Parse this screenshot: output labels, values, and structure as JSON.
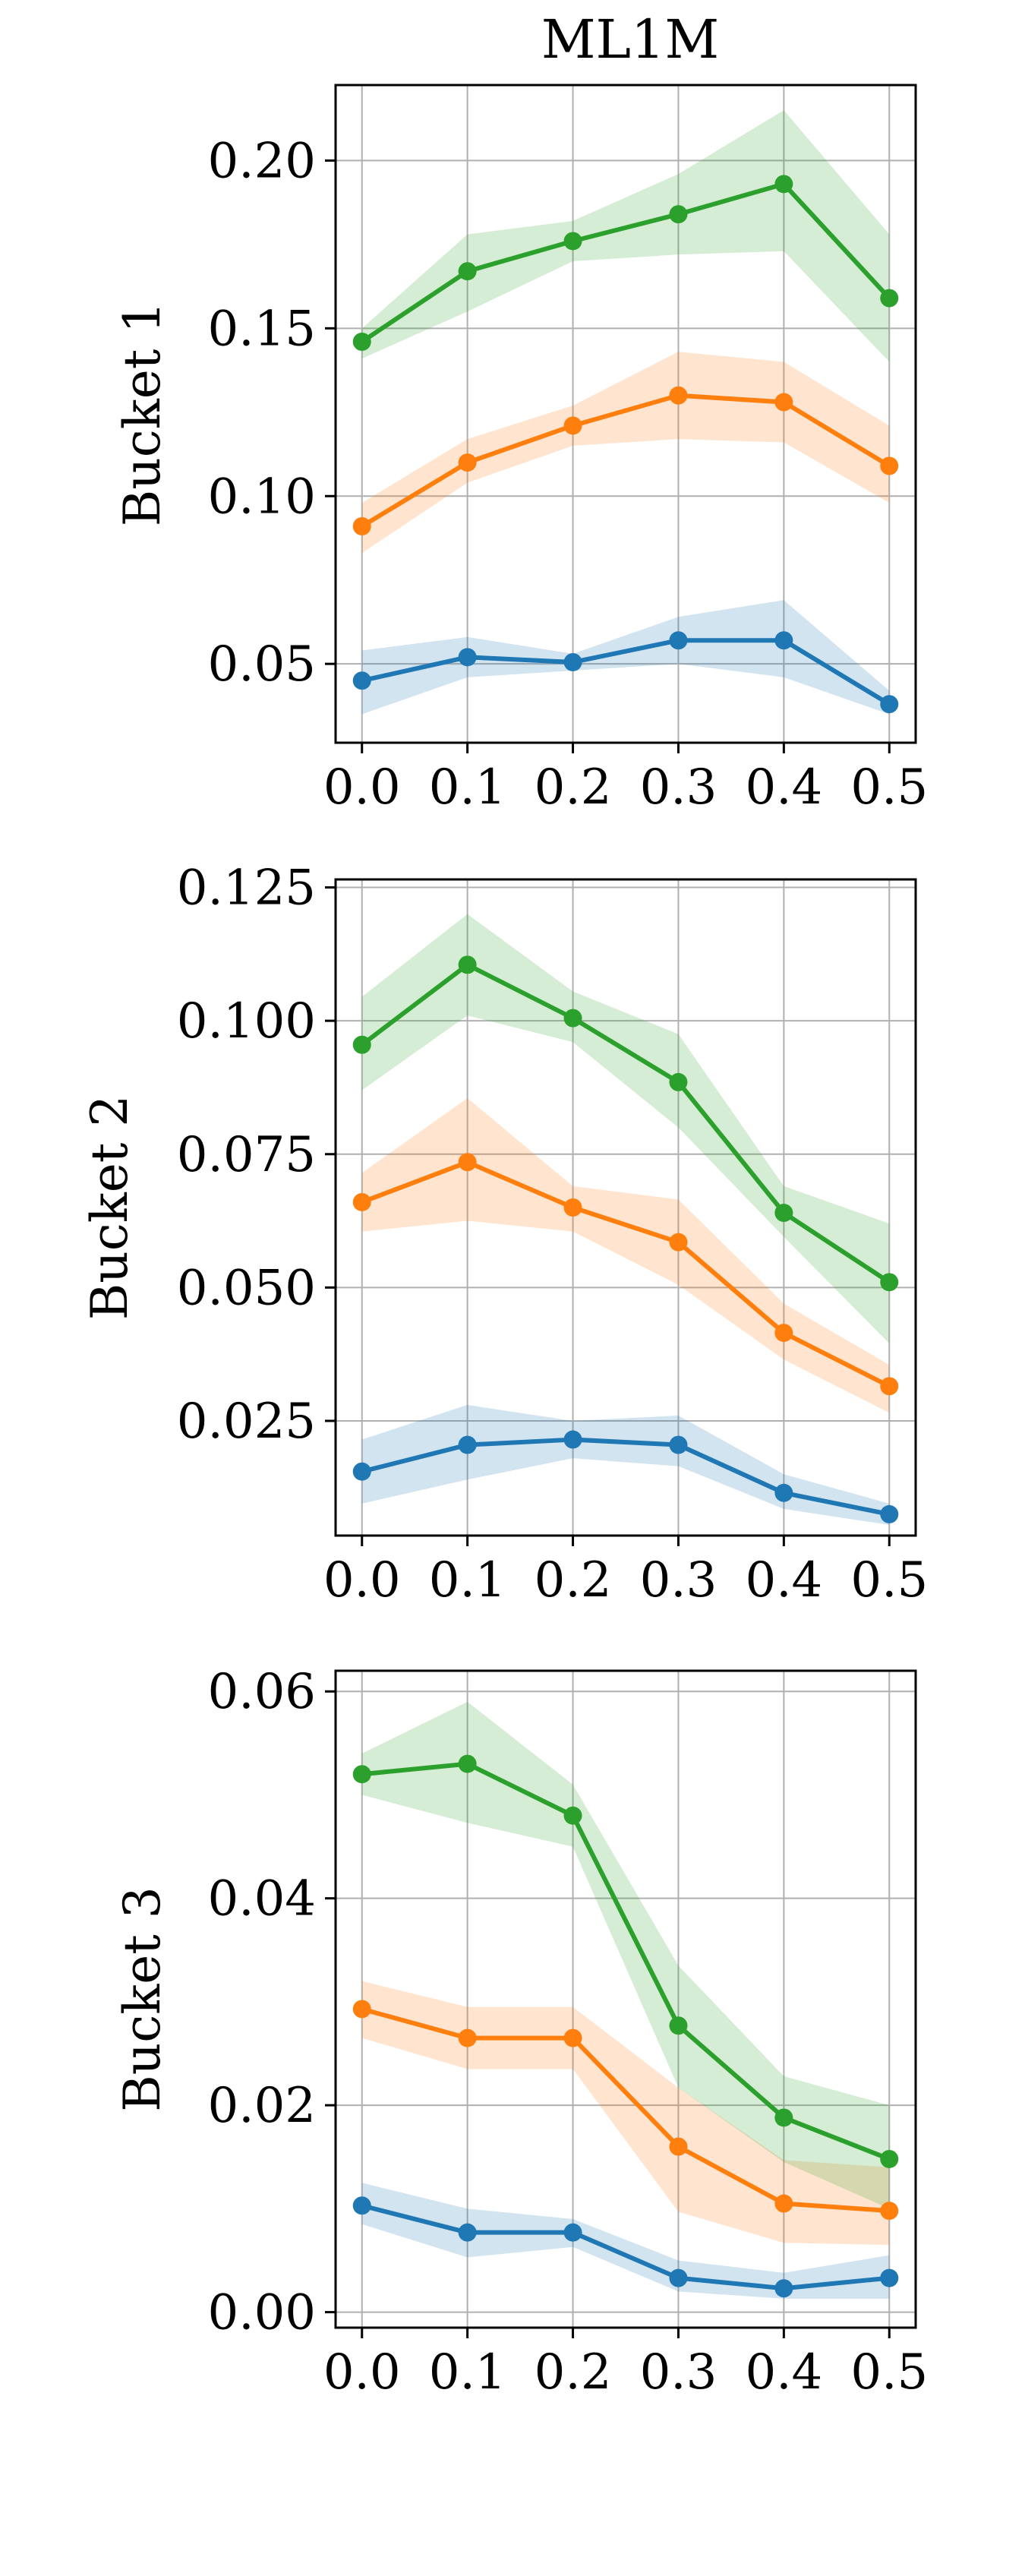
{
  "figure": {
    "title": "ML1M"
  },
  "colors": {
    "blue": "#1f77b4",
    "orange": "#ff7f0e",
    "green": "#2ca02c",
    "grid": "#b0b0b0",
    "axis": "#000000"
  },
  "chart_data": [
    {
      "type": "line",
      "title": "ML1M",
      "xlabel": "",
      "ylabel": "Bucket 1",
      "x": [
        0.0,
        0.1,
        0.2,
        0.3,
        0.4,
        0.5
      ],
      "xticks": [
        "0.0",
        "0.1",
        "0.2",
        "0.3",
        "0.4",
        "0.5"
      ],
      "xlim": [
        -0.025,
        0.525
      ],
      "ylim": [
        0.0265,
        0.2225
      ],
      "yticks": [
        "0.05",
        "0.10",
        "0.15",
        "0.20"
      ],
      "ytick_values": [
        0.05,
        0.1,
        0.15,
        0.2
      ],
      "grid": true,
      "series": [
        {
          "color": "blue",
          "values": [
            0.045,
            0.052,
            0.0505,
            0.057,
            0.057,
            0.038
          ],
          "lower": [
            0.035,
            0.046,
            0.048,
            0.05,
            0.046,
            0.035
          ],
          "upper": [
            0.054,
            0.058,
            0.053,
            0.064,
            0.069,
            0.042
          ]
        },
        {
          "color": "orange",
          "values": [
            0.091,
            0.11,
            0.121,
            0.13,
            0.128,
            0.109
          ],
          "lower": [
            0.083,
            0.104,
            0.115,
            0.117,
            0.116,
            0.098
          ],
          "upper": [
            0.098,
            0.117,
            0.127,
            0.143,
            0.14,
            0.121
          ]
        },
        {
          "color": "green",
          "values": [
            0.146,
            0.167,
            0.176,
            0.184,
            0.193,
            0.159
          ],
          "lower": [
            0.141,
            0.155,
            0.17,
            0.172,
            0.173,
            0.14
          ],
          "upper": [
            0.15,
            0.178,
            0.182,
            0.196,
            0.215,
            0.178
          ]
        }
      ]
    },
    {
      "type": "line",
      "title": "",
      "xlabel": "",
      "ylabel": "Bucket 2",
      "x": [
        0.0,
        0.1,
        0.2,
        0.3,
        0.4,
        0.5
      ],
      "xticks": [
        "0.0",
        "0.1",
        "0.2",
        "0.3",
        "0.4",
        "0.5"
      ],
      "xlim": [
        -0.025,
        0.525
      ],
      "ylim": [
        0.0035,
        0.1265
      ],
      "yticks": [
        "0.025",
        "0.050",
        "0.075",
        "0.100",
        "0.125"
      ],
      "ytick_values": [
        0.025,
        0.05,
        0.075,
        0.1,
        0.125
      ],
      "grid": true,
      "series": [
        {
          "color": "blue",
          "values": [
            0.0155,
            0.0205,
            0.0215,
            0.0205,
            0.0115,
            0.0075
          ],
          "lower": [
            0.0095,
            0.014,
            0.018,
            0.0165,
            0.0085,
            0.0055
          ],
          "upper": [
            0.0215,
            0.028,
            0.025,
            0.026,
            0.015,
            0.0095
          ]
        },
        {
          "color": "orange",
          "values": [
            0.066,
            0.0735,
            0.065,
            0.0585,
            0.0415,
            0.0315
          ],
          "lower": [
            0.0605,
            0.0625,
            0.0605,
            0.0505,
            0.0365,
            0.0265
          ],
          "upper": [
            0.0715,
            0.0855,
            0.069,
            0.0665,
            0.047,
            0.0355
          ]
        },
        {
          "color": "green",
          "values": [
            0.0955,
            0.1105,
            0.1005,
            0.0885,
            0.064,
            0.051
          ],
          "lower": [
            0.087,
            0.101,
            0.096,
            0.08,
            0.0595,
            0.0395
          ],
          "upper": [
            0.1045,
            0.12,
            0.1055,
            0.0975,
            0.069,
            0.062
          ]
        }
      ]
    },
    {
      "type": "line",
      "title": "",
      "xlabel": "",
      "ylabel": "Bucket 3",
      "x": [
        0.0,
        0.1,
        0.2,
        0.3,
        0.4,
        0.5
      ],
      "xticks": [
        "0.0",
        "0.1",
        "0.2",
        "0.3",
        "0.4",
        "0.5"
      ],
      "xlim": [
        -0.025,
        0.525
      ],
      "ylim": [
        -0.0015,
        0.062
      ],
      "yticks": [
        "0.00",
        "0.02",
        "0.04",
        "0.06"
      ],
      "ytick_values": [
        0.0,
        0.02,
        0.04,
        0.06
      ],
      "grid": true,
      "series": [
        {
          "color": "blue",
          "values": [
            0.0103,
            0.0077,
            0.0077,
            0.0033,
            0.0023,
            0.0033
          ],
          "lower": [
            0.0085,
            0.0053,
            0.0063,
            0.002,
            0.0013,
            0.0013
          ],
          "upper": [
            0.0125,
            0.01,
            0.009,
            0.005,
            0.0038,
            0.0055
          ]
        },
        {
          "color": "orange",
          "values": [
            0.0293,
            0.0265,
            0.0265,
            0.016,
            0.0105,
            0.0098
          ],
          "lower": [
            0.0265,
            0.0235,
            0.0235,
            0.0097,
            0.0067,
            0.0065
          ],
          "upper": [
            0.032,
            0.0295,
            0.0295,
            0.0217,
            0.0147,
            0.014
          ]
        },
        {
          "color": "green",
          "values": [
            0.052,
            0.053,
            0.048,
            0.0277,
            0.0188,
            0.0148
          ],
          "lower": [
            0.05,
            0.0473,
            0.045,
            0.0217,
            0.0145,
            0.01
          ],
          "upper": [
            0.054,
            0.059,
            0.051,
            0.0335,
            0.0228,
            0.02
          ]
        }
      ]
    }
  ]
}
